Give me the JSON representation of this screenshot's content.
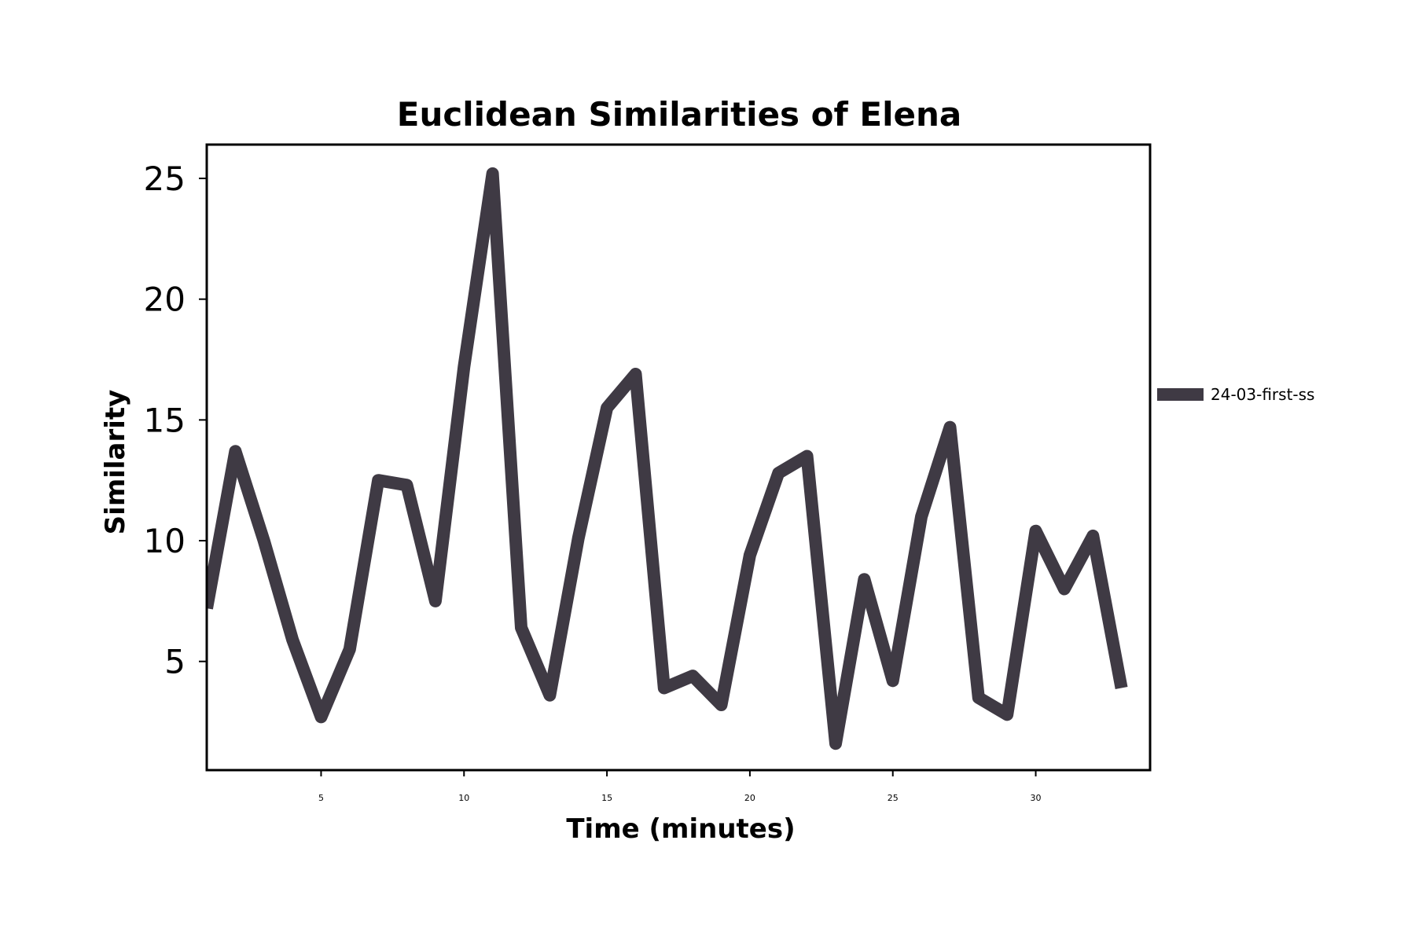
{
  "chart_data": {
    "type": "line",
    "title": "Euclidean Similarities of Elena",
    "xlabel": "Time (minutes)",
    "ylabel": "Similarity",
    "xlim": [
      1,
      34
    ],
    "ylim": [
      0.5,
      26.4
    ],
    "xticks": [
      5,
      10,
      15,
      20,
      25,
      30
    ],
    "yticks": [
      5,
      10,
      15,
      20,
      25
    ],
    "grid": false,
    "legend_position": "right",
    "series": [
      {
        "name": "24-03-first-ss",
        "color": "#3f3a44",
        "x": [
          1,
          2,
          3,
          4,
          5,
          6,
          7,
          8,
          9,
          10,
          11,
          12,
          13,
          14,
          15,
          16,
          17,
          18,
          19,
          20,
          21,
          22,
          23,
          24,
          25,
          26,
          27,
          28,
          29,
          30,
          31,
          32,
          33
        ],
        "y": [
          7.2,
          13.7,
          10.0,
          5.9,
          2.7,
          5.5,
          12.5,
          12.3,
          7.5,
          17.2,
          25.2,
          6.4,
          3.6,
          10.1,
          15.5,
          16.9,
          3.9,
          4.4,
          3.2,
          9.4,
          12.8,
          13.5,
          1.6,
          8.4,
          4.2,
          11.0,
          14.7,
          3.5,
          2.8,
          10.4,
          8.0,
          10.2,
          3.9
        ]
      }
    ]
  }
}
